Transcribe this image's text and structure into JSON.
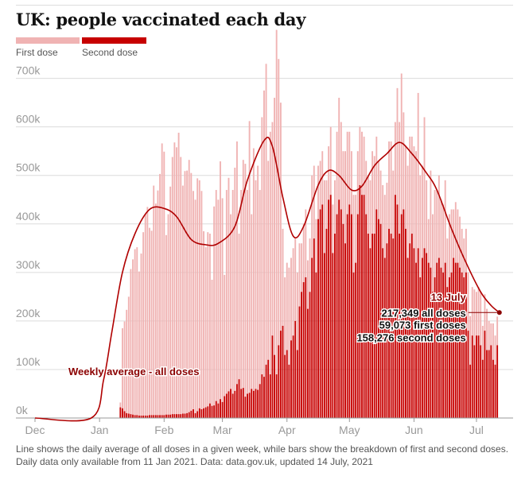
{
  "title": "UK: people vaccinated each day",
  "legend": [
    {
      "label": "First dose",
      "color": "#f0b3b3"
    },
    {
      "label": "Second dose",
      "color": "#c70000"
    }
  ],
  "colors": {
    "first": "#f0b3b3",
    "second": "#c70000",
    "line": "#b00000",
    "grid": "#dcdcdc",
    "axis_text": "#999999",
    "annotation": "#8b0000"
  },
  "footnote": {
    "line1": "Line shows the daily average of all doses in a given week, while bars show the breakdown of first and second doses.",
    "line2": "Daily data only available from 11 Jan 2021. Data: data.gov.uk, updated 14 July, 2021"
  },
  "annotations": {
    "line_label": "Weekly average - all doses",
    "date": "13 July",
    "all_doses": "217,349 all doses",
    "first_doses": "59,073 first doses",
    "second_doses": "158,276 second doses"
  },
  "chart_data": {
    "type": "bar",
    "title": "UK: people vaccinated each day",
    "xlabel": "",
    "ylabel": "",
    "x_range_days": [
      0,
      225
    ],
    "ylim": [
      0,
      760000
    ],
    "y_ticks": [
      0,
      100000,
      200000,
      300000,
      400000,
      500000,
      600000,
      700000
    ],
    "y_tick_labels": [
      "0k",
      "100k",
      "200k",
      "300k",
      "400k",
      "500k",
      "600k",
      "700k"
    ],
    "x_ticks": [
      {
        "label": "Dec",
        "day": 0
      },
      {
        "label": "Jan",
        "day": 31
      },
      {
        "label": "Feb",
        "day": 62
      },
      {
        "label": "Mar",
        "day": 90
      },
      {
        "label": "Apr",
        "day": 121
      },
      {
        "label": "May",
        "day": 151
      },
      {
        "label": "Jun",
        "day": 182
      },
      {
        "label": "Jul",
        "day": 212
      }
    ],
    "bars_start_day": 41,
    "bars_start_date": "2021-01-11",
    "first_dose_daily": [
      10000,
      165000,
      185000,
      213000,
      241000,
      299000,
      320000,
      342000,
      346000,
      297000,
      334000,
      378000,
      415000,
      430000,
      386000,
      380000,
      473000,
      436000,
      463000,
      497000,
      560000,
      543000,
      370000,
      413000,
      470000,
      530000,
      560000,
      550000,
      580000,
      530000,
      470000,
      500000,
      500000,
      520000,
      490000,
      450000,
      440000,
      480000,
      470000,
      450000,
      365000,
      330000,
      359000,
      350000,
      260000,
      410000,
      435000,
      420000,
      490000,
      420000,
      250000,
      420000,
      440000,
      360000,
      420000,
      460000,
      500000,
      300000,
      410000,
      470000,
      480000,
      420000,
      560000,
      360000,
      500000,
      430000,
      462000,
      400000,
      530000,
      590000,
      620000,
      410000,
      500000,
      440000,
      530000,
      710000,
      590000,
      470000,
      200000,
      160000,
      180000,
      200000,
      170000,
      180000,
      170000,
      160000,
      130000,
      100000,
      120000,
      140000,
      100000,
      110000,
      170000,
      150000,
      110000,
      110000,
      100000,
      110000,
      150000,
      100000,
      110000,
      140000,
      100000,
      110000,
      170000,
      210000,
      180000,
      150000,
      190000,
      170000,
      150000,
      130000,
      160000,
      140000,
      130000,
      120000,
      130000,
      120000,
      110000,
      120000,
      140000,
      170000,
      160000,
      150000,
      120000,
      110000,
      130000,
      130000,
      125000,
      180000,
      190000,
      140000,
      150000,
      240000,
      230000,
      290000,
      200000,
      170000,
      190000,
      220000,
      200000,
      210000,
      230000,
      320000,
      210000,
      190000,
      270000,
      150000,
      90000,
      200000,
      160000,
      180000,
      150000,
      170000,
      140000,
      140000,
      170000,
      100000,
      130000,
      130000,
      100000,
      125000,
      110000,
      105000,
      90000,
      80000,
      90000,
      120000,
      100000,
      100000,
      115000,
      90000,
      100000,
      110000,
      70000,
      75000,
      85000,
      60000,
      45000,
      75000,
      60000,
      59073
    ],
    "second_dose_daily": [
      22000,
      20000,
      14000,
      10000,
      9000,
      8000,
      7000,
      6000,
      6000,
      5000,
      5000,
      5000,
      5000,
      5000,
      6000,
      6000,
      6000,
      6000,
      6000,
      6000,
      6000,
      6000,
      7000,
      7000,
      7000,
      8000,
      8000,
      8000,
      8000,
      8000,
      9000,
      9000,
      10000,
      12000,
      15000,
      18000,
      10000,
      14000,
      20000,
      18000,
      20000,
      22000,
      24000,
      30000,
      25000,
      26000,
      35000,
      30000,
      39000,
      33000,
      45000,
      50000,
      55000,
      60000,
      50000,
      56000,
      70000,
      80000,
      60000,
      62000,
      44000,
      50000,
      52000,
      60000,
      56000,
      60000,
      58000,
      70000,
      90000,
      85000,
      110000,
      120000,
      90000,
      170000,
      130000,
      90000,
      150000,
      180000,
      190000,
      130000,
      140000,
      110000,
      160000,
      170000,
      200000,
      140000,
      230000,
      260000,
      280000,
      290000,
      225000,
      260000,
      330000,
      370000,
      300000,
      410000,
      430000,
      440000,
      340000,
      390000,
      450000,
      460000,
      340000,
      380000,
      420000,
      450000,
      430000,
      400000,
      360000,
      420000,
      440000,
      420000,
      300000,
      320000,
      420000,
      480000,
      460000,
      460000,
      420000,
      380000,
      350000,
      380000,
      380000,
      430000,
      410000,
      400000,
      350000,
      330000,
      360000,
      390000,
      380000,
      370000,
      460000,
      440000,
      380000,
      420000,
      430000,
      390000,
      330000,
      360000,
      380000,
      350000,
      320000,
      350000,
      290000,
      330000,
      350000,
      340000,
      320000,
      310000,
      260000,
      290000,
      320000,
      330000,
      310000,
      300000,
      320000,
      270000,
      290000,
      300000,
      330000,
      320000,
      320000,
      310000,
      300000,
      290000,
      300000,
      180000,
      110000,
      170000,
      150000,
      170000,
      170000,
      150000,
      120000,
      180000,
      140000,
      140000,
      150000,
      120000,
      110000,
      150000,
      140000,
      140000,
      120000,
      110000,
      120000,
      130000,
      110000,
      100000,
      158276
    ],
    "weekly_average_all_doses": [
      {
        "day": 0,
        "value": 0
      },
      {
        "day": 27,
        "value": 0
      },
      {
        "day": 33,
        "value": 80000
      },
      {
        "day": 37,
        "value": 180000
      },
      {
        "day": 42,
        "value": 300000
      },
      {
        "day": 48,
        "value": 380000
      },
      {
        "day": 55,
        "value": 430000
      },
      {
        "day": 62,
        "value": 432000
      },
      {
        "day": 68,
        "value": 415000
      },
      {
        "day": 75,
        "value": 368000
      },
      {
        "day": 82,
        "value": 357000
      },
      {
        "day": 88,
        "value": 360000
      },
      {
        "day": 96,
        "value": 395000
      },
      {
        "day": 102,
        "value": 490000
      },
      {
        "day": 110,
        "value": 572000
      },
      {
        "day": 114,
        "value": 560000
      },
      {
        "day": 119,
        "value": 455000
      },
      {
        "day": 124,
        "value": 375000
      },
      {
        "day": 129,
        "value": 395000
      },
      {
        "day": 136,
        "value": 480000
      },
      {
        "day": 141,
        "value": 510000
      },
      {
        "day": 146,
        "value": 500000
      },
      {
        "day": 152,
        "value": 470000
      },
      {
        "day": 157,
        "value": 478000
      },
      {
        "day": 163,
        "value": 520000
      },
      {
        "day": 169,
        "value": 545000
      },
      {
        "day": 175,
        "value": 568000
      },
      {
        "day": 181,
        "value": 545000
      },
      {
        "day": 188,
        "value": 505000
      },
      {
        "day": 193,
        "value": 470000
      },
      {
        "day": 200,
        "value": 390000
      },
      {
        "day": 207,
        "value": 320000
      },
      {
        "day": 214,
        "value": 260000
      },
      {
        "day": 219,
        "value": 232000
      },
      {
        "day": 223,
        "value": 217349
      }
    ],
    "highlight": {
      "date": "13 July",
      "day": 223,
      "all_doses": 217349,
      "first_doses": 59073,
      "second_doses": 158276
    }
  }
}
